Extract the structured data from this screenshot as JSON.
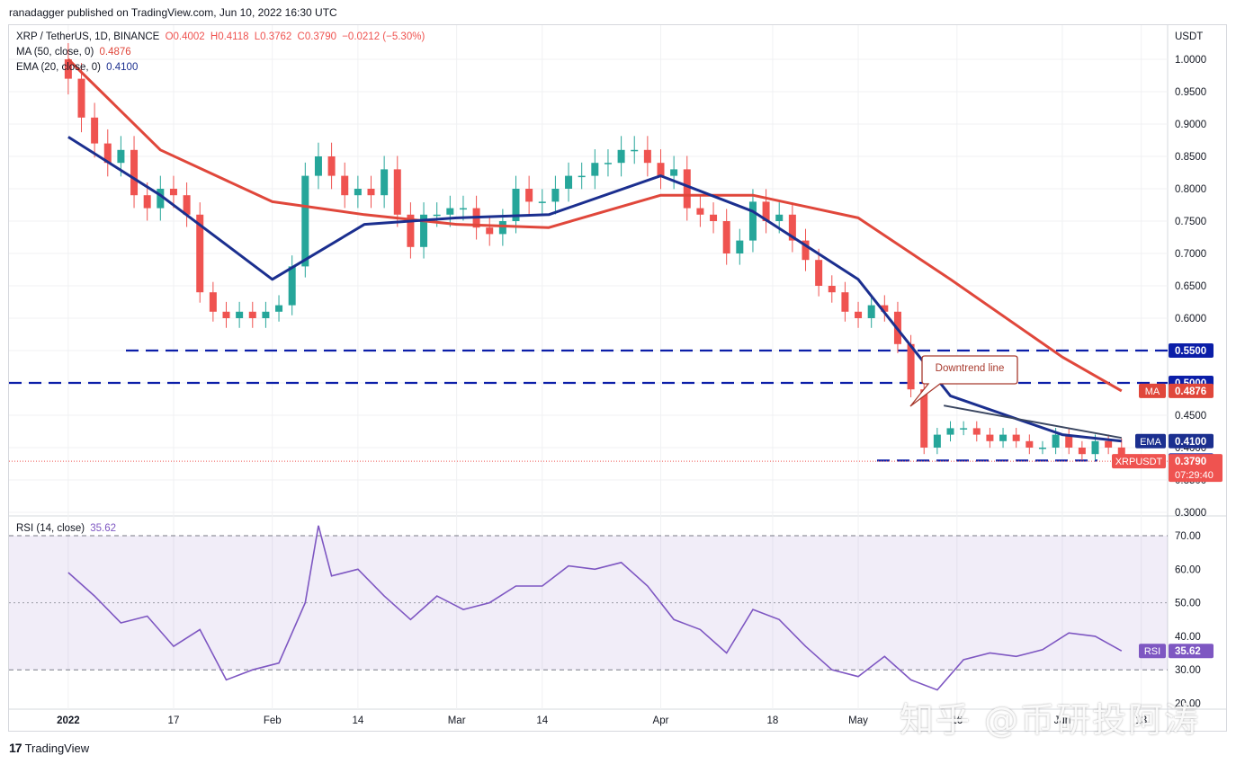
{
  "header": {
    "publisher_line": "ranadagger published on TradingView.com, Jun 10, 2022 16:30 UTC"
  },
  "legend": {
    "symbol": "XRP / TetherUS, 1D, BINANCE",
    "ohlc": {
      "o": "O0.4002",
      "h": "H0.4118",
      "l": "L0.3762",
      "c": "C0.3790",
      "chg": "−0.0212 (−5.30%)"
    },
    "ma_label": "MA (50, close, 0)",
    "ma_value": "0.4876",
    "ema_label": "EMA (20, close, 0)",
    "ema_value": "0.4100",
    "rsi_label": "RSI (14, close)",
    "rsi_value": "35.62"
  },
  "price_axis": {
    "unit": "USDT",
    "ticks": [
      "1.0000",
      "0.9500",
      "0.9000",
      "0.8500",
      "0.8000",
      "0.7500",
      "0.7000",
      "0.6500",
      "0.6000",
      "0.5500",
      "0.5000",
      "0.4500",
      "0.4000",
      "0.3500",
      "0.3000"
    ]
  },
  "price_labels": {
    "level_055": "0.5500",
    "level_050": "0.5000",
    "ma_tag": "MA",
    "ma_price": "0.4876",
    "ema_tag": "EMA",
    "ema_price": "0.4100",
    "level_038": "0.3800",
    "symbol_tag": "XRPUSDT",
    "last_price": "0.3790",
    "countdown": "07:29:40"
  },
  "rsi_axis": {
    "ticks": [
      "70.00",
      "60.00",
      "50.00",
      "40.00",
      "30.00",
      "20.00"
    ]
  },
  "time_axis": {
    "ticks": [
      "2022",
      "17",
      "Feb",
      "14",
      "Mar",
      "14",
      "Apr",
      "18",
      "May",
      "16",
      "Jun",
      "13"
    ]
  },
  "annotation": {
    "downtrend": "Downtrend line"
  },
  "footer": {
    "brand": "TradingView"
  },
  "watermark": "知乎 @币研投阿涛",
  "colors": {
    "up": "#26a69a",
    "down": "#ef5350",
    "ma": "#e0473b",
    "ema": "#1b2f8f",
    "level": "#0b1ea8",
    "rsi": "#7e57c2"
  },
  "chart_data": [
    {
      "type": "candlestick",
      "title": "XRP / TetherUS, 1D, BINANCE",
      "ylabel": "USDT",
      "ylim": [
        0.3,
        1.0
      ],
      "x": [
        "2022-01-01",
        "2022-01-03",
        "2022-01-05",
        "2022-01-07",
        "2022-01-09",
        "2022-01-11",
        "2022-01-13",
        "2022-01-15",
        "2022-01-17",
        "2022-01-19",
        "2022-01-21",
        "2022-01-23",
        "2022-01-25",
        "2022-01-27",
        "2022-01-29",
        "2022-01-31",
        "2022-02-02",
        "2022-02-04",
        "2022-02-06",
        "2022-02-08",
        "2022-02-10",
        "2022-02-12",
        "2022-02-14",
        "2022-02-16",
        "2022-02-18",
        "2022-02-20",
        "2022-02-22",
        "2022-02-24",
        "2022-02-26",
        "2022-02-28",
        "2022-03-02",
        "2022-03-04",
        "2022-03-06",
        "2022-03-08",
        "2022-03-10",
        "2022-03-12",
        "2022-03-14",
        "2022-03-16",
        "2022-03-18",
        "2022-03-20",
        "2022-03-22",
        "2022-03-24",
        "2022-03-26",
        "2022-03-28",
        "2022-03-30",
        "2022-04-01",
        "2022-04-03",
        "2022-04-05",
        "2022-04-07",
        "2022-04-09",
        "2022-04-11",
        "2022-04-13",
        "2022-04-15",
        "2022-04-17",
        "2022-04-19",
        "2022-04-21",
        "2022-04-23",
        "2022-04-25",
        "2022-04-27",
        "2022-04-29",
        "2022-05-01",
        "2022-05-03",
        "2022-05-05",
        "2022-05-07",
        "2022-05-09",
        "2022-05-11",
        "2022-05-13",
        "2022-05-15",
        "2022-05-17",
        "2022-05-19",
        "2022-05-21",
        "2022-05-23",
        "2022-05-25",
        "2022-05-27",
        "2022-05-29",
        "2022-05-31",
        "2022-06-02",
        "2022-06-04",
        "2022-06-06",
        "2022-06-08",
        "2022-06-10"
      ],
      "close": [
        0.97,
        0.91,
        0.87,
        0.84,
        0.86,
        0.79,
        0.77,
        0.8,
        0.79,
        0.76,
        0.64,
        0.61,
        0.6,
        0.61,
        0.6,
        0.61,
        0.62,
        0.68,
        0.82,
        0.85,
        0.82,
        0.79,
        0.8,
        0.79,
        0.83,
        0.76,
        0.71,
        0.76,
        0.76,
        0.77,
        0.77,
        0.74,
        0.73,
        0.75,
        0.8,
        0.78,
        0.78,
        0.8,
        0.82,
        0.82,
        0.84,
        0.84,
        0.86,
        0.86,
        0.84,
        0.82,
        0.83,
        0.77,
        0.76,
        0.75,
        0.7,
        0.72,
        0.78,
        0.75,
        0.76,
        0.72,
        0.69,
        0.65,
        0.64,
        0.61,
        0.6,
        0.62,
        0.61,
        0.56,
        0.49,
        0.4,
        0.42,
        0.43,
        0.43,
        0.42,
        0.41,
        0.42,
        0.41,
        0.4,
        0.4,
        0.42,
        0.4,
        0.39,
        0.41,
        0.4,
        0.379
      ],
      "series": [
        {
          "name": "MA (50, close, 0)",
          "x": [
            "2022-01-01",
            "2022-01-15",
            "2022-02-01",
            "2022-02-15",
            "2022-03-01",
            "2022-03-15",
            "2022-04-01",
            "2022-04-15",
            "2022-05-01",
            "2022-05-15",
            "2022-06-01",
            "2022-06-10"
          ],
          "values": [
            1.0,
            0.86,
            0.78,
            0.76,
            0.745,
            0.74,
            0.79,
            0.79,
            0.755,
            0.66,
            0.54,
            0.4876
          ]
        },
        {
          "name": "EMA (20, close, 0)",
          "x": [
            "2022-01-01",
            "2022-01-15",
            "2022-02-01",
            "2022-02-15",
            "2022-03-01",
            "2022-03-15",
            "2022-04-01",
            "2022-04-15",
            "2022-05-01",
            "2022-05-15",
            "2022-06-01",
            "2022-06-10"
          ],
          "values": [
            0.88,
            0.79,
            0.66,
            0.745,
            0.755,
            0.76,
            0.82,
            0.765,
            0.66,
            0.48,
            0.42,
            0.41
          ]
        }
      ],
      "horizontal_levels": [
        0.55,
        0.5,
        0.38
      ],
      "trendline": {
        "name": "Downtrend line",
        "from": [
          "2022-05-14",
          0.465
        ],
        "to": [
          "2022-06-10",
          0.415
        ]
      }
    },
    {
      "type": "line",
      "title": "RSI (14, close)",
      "ylim": [
        20,
        75
      ],
      "x": [
        "2022-01-01",
        "2022-01-05",
        "2022-01-09",
        "2022-01-13",
        "2022-01-17",
        "2022-01-21",
        "2022-01-25",
        "2022-01-29",
        "2022-02-02",
        "2022-02-06",
        "2022-02-08",
        "2022-02-10",
        "2022-02-14",
        "2022-02-18",
        "2022-02-22",
        "2022-02-26",
        "2022-03-02",
        "2022-03-06",
        "2022-03-10",
        "2022-03-14",
        "2022-03-18",
        "2022-03-22",
        "2022-03-26",
        "2022-03-30",
        "2022-04-03",
        "2022-04-07",
        "2022-04-11",
        "2022-04-15",
        "2022-04-19",
        "2022-04-23",
        "2022-04-27",
        "2022-05-01",
        "2022-05-05",
        "2022-05-09",
        "2022-05-13",
        "2022-05-17",
        "2022-05-21",
        "2022-05-25",
        "2022-05-29",
        "2022-06-02",
        "2022-06-06",
        "2022-06-10"
      ],
      "values": [
        59,
        52,
        44,
        46,
        37,
        42,
        27,
        30,
        32,
        50,
        73,
        58,
        60,
        52,
        45,
        52,
        48,
        50,
        55,
        55,
        61,
        60,
        62,
        55,
        45,
        42,
        35,
        48,
        45,
        37,
        30,
        28,
        34,
        27,
        24,
        33,
        35,
        34,
        36,
        41,
        40,
        35.62
      ],
      "bands": [
        30,
        70
      ]
    }
  ]
}
